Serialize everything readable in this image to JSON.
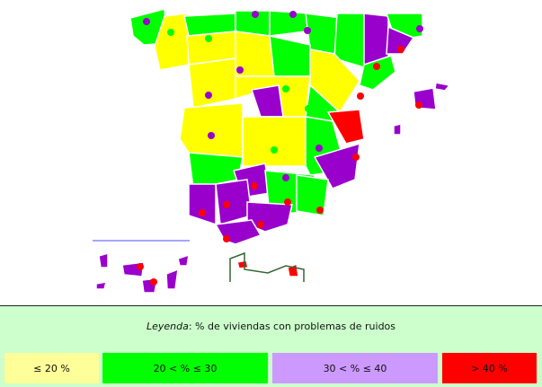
{
  "legend": {
    "title_prefix": "Leyenda",
    "title_rest": ": % de viviendas con problemas de ruidos",
    "items": [
      {
        "label": "≤ 20 %",
        "color": "#ffff99"
      },
      {
        "label": "20 < % ≤ 30",
        "color": "#00ff00"
      },
      {
        "label": "30 < % ≤ 40",
        "color": "#cc99ff"
      },
      {
        "label": "> 40 %",
        "color": "#ff0000"
      }
    ]
  }
}
